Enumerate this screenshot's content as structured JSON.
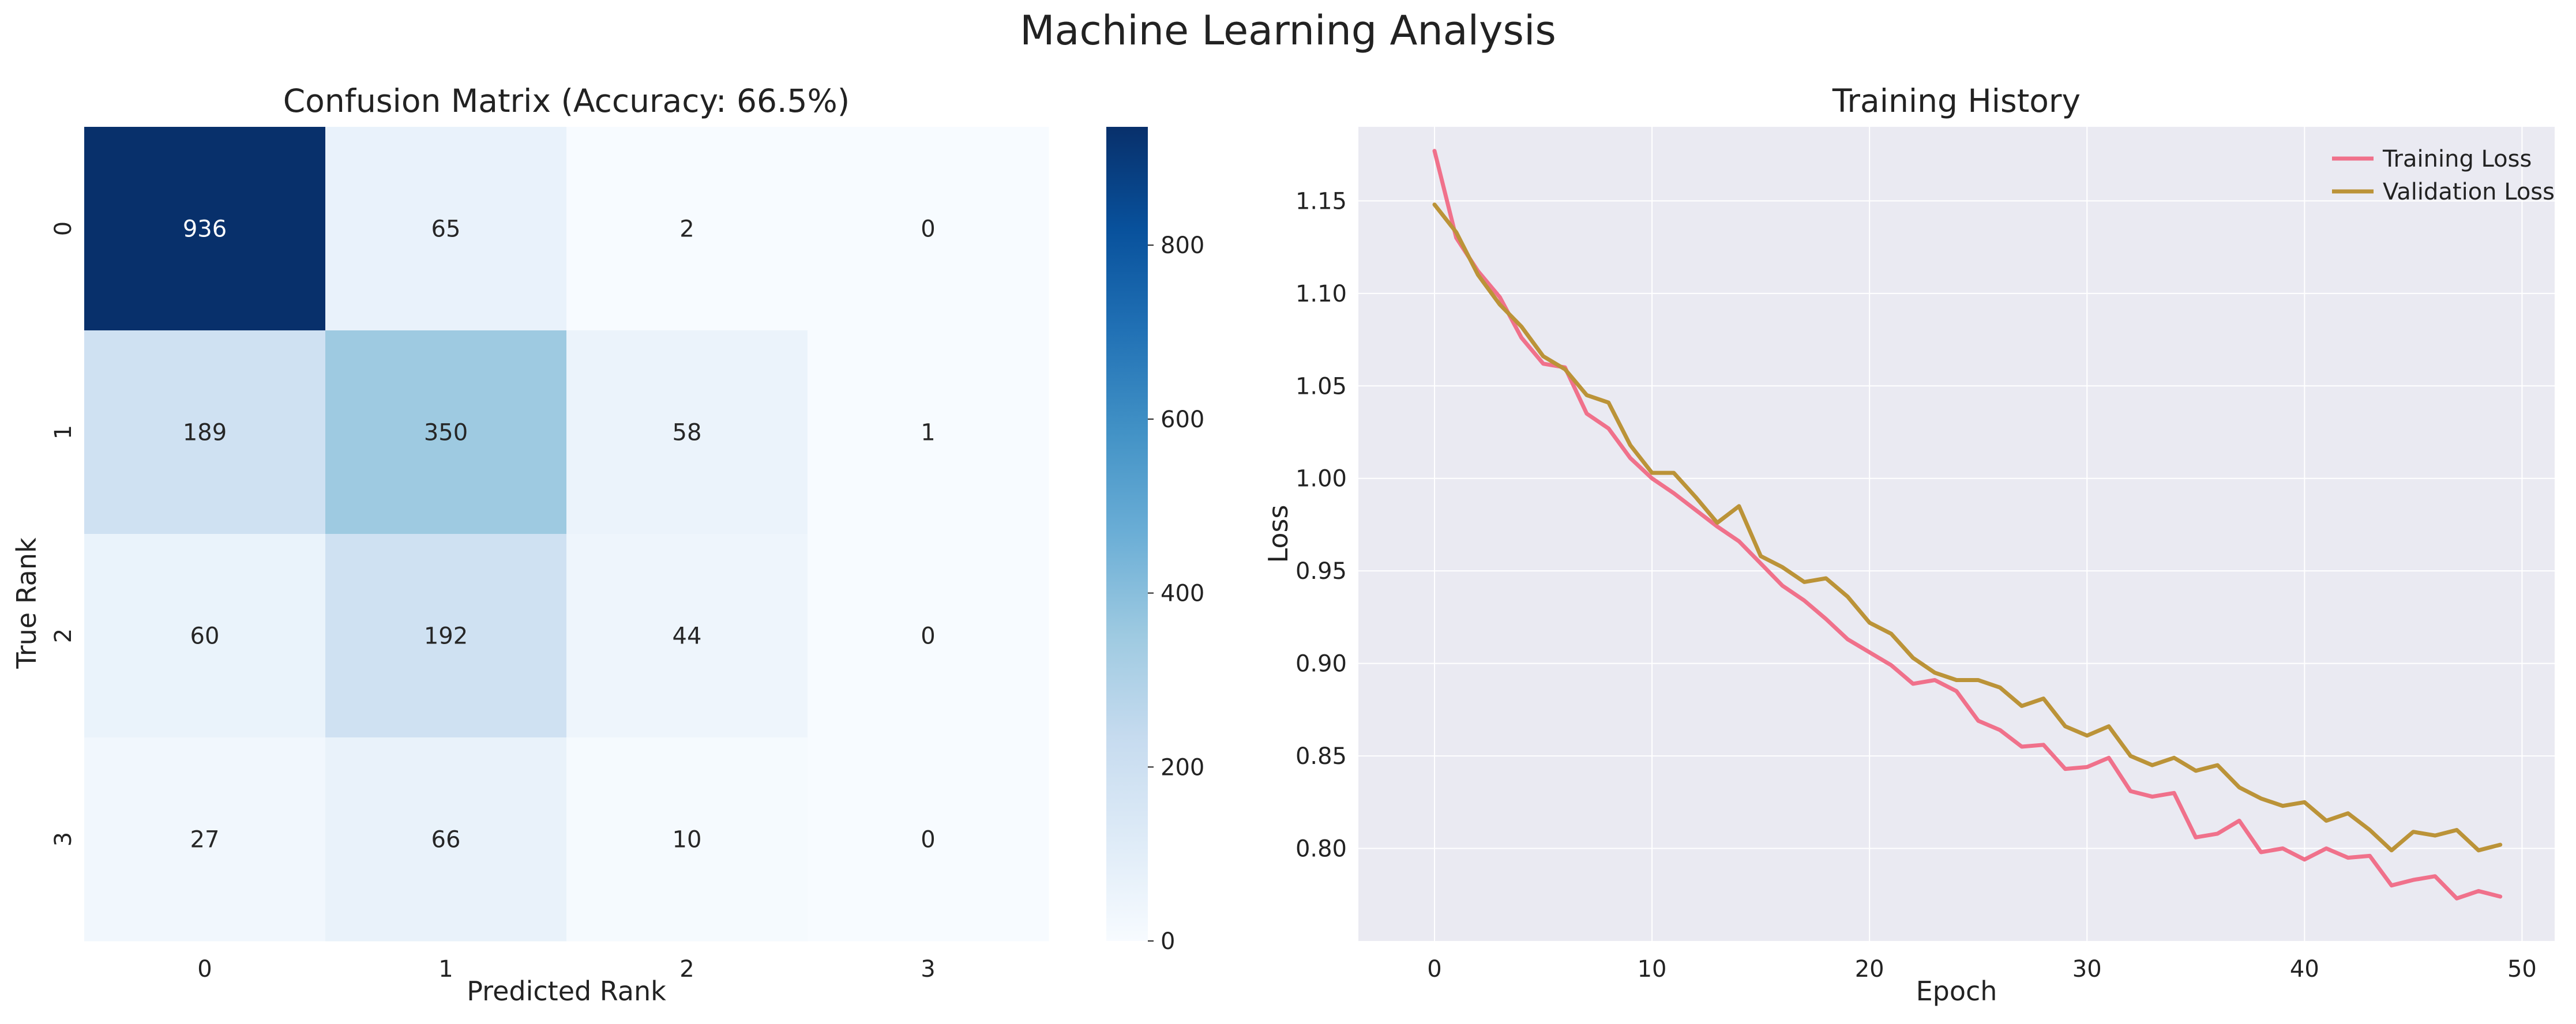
{
  "figure": {
    "title": "Machine Learning Analysis"
  },
  "chart_data": [
    {
      "type": "heatmap",
      "title": "Confusion Matrix (Accuracy: 66.5%)",
      "xlabel": "Predicted Rank",
      "ylabel": "True Rank",
      "x_categories": [
        "0",
        "1",
        "2",
        "3"
      ],
      "y_categories": [
        "0",
        "1",
        "2",
        "3"
      ],
      "values": [
        [
          936,
          65,
          2,
          0
        ],
        [
          189,
          350,
          58,
          1
        ],
        [
          60,
          192,
          44,
          0
        ],
        [
          27,
          66,
          10,
          0
        ]
      ],
      "colormap": "Blues",
      "colorbar": {
        "range": [
          0,
          936
        ],
        "ticks": [
          0,
          200,
          400,
          600,
          800
        ]
      }
    },
    {
      "type": "line",
      "title": "Training History",
      "xlabel": "Epoch",
      "ylabel": "Loss",
      "xlim": [
        -3.5,
        51.5
      ],
      "ylim": [
        0.75,
        1.19
      ],
      "xticks": [
        0,
        10,
        20,
        30,
        40,
        50
      ],
      "yticks": [
        0.8,
        0.85,
        0.9,
        0.95,
        1.0,
        1.05,
        1.1,
        1.15
      ],
      "grid": true,
      "legend": "top-right",
      "x": [
        0,
        1,
        2,
        3,
        4,
        5,
        6,
        7,
        8,
        9,
        10,
        11,
        12,
        13,
        14,
        15,
        16,
        17,
        18,
        19,
        20,
        21,
        22,
        23,
        24,
        25,
        26,
        27,
        28,
        29,
        30,
        31,
        32,
        33,
        34,
        35,
        36,
        37,
        38,
        39,
        40,
        41,
        42,
        43,
        44,
        45,
        46,
        47,
        48,
        49
      ],
      "series": [
        {
          "name": "Training Loss",
          "color": "#f0718b",
          "values": [
            1.177,
            1.13,
            1.112,
            1.098,
            1.076,
            1.062,
            1.06,
            1.035,
            1.027,
            1.011,
            1.0,
            0.992,
            0.983,
            0.974,
            0.966,
            0.954,
            0.942,
            0.934,
            0.924,
            0.913,
            0.906,
            0.899,
            0.889,
            0.891,
            0.885,
            0.869,
            0.864,
            0.855,
            0.856,
            0.843,
            0.844,
            0.849,
            0.831,
            0.828,
            0.83,
            0.806,
            0.808,
            0.815,
            0.798,
            0.8,
            0.794,
            0.8,
            0.795,
            0.796,
            0.78,
            0.783,
            0.785,
            0.773,
            0.777,
            0.774
          ]
        },
        {
          "name": "Validation Loss",
          "color": "#bb9338",
          "values": [
            1.148,
            1.133,
            1.11,
            1.094,
            1.082,
            1.066,
            1.059,
            1.045,
            1.041,
            1.018,
            1.003,
            1.003,
            0.99,
            0.976,
            0.985,
            0.958,
            0.952,
            0.944,
            0.946,
            0.936,
            0.922,
            0.916,
            0.903,
            0.895,
            0.891,
            0.891,
            0.887,
            0.877,
            0.881,
            0.866,
            0.861,
            0.866,
            0.85,
            0.845,
            0.849,
            0.842,
            0.845,
            0.833,
            0.827,
            0.823,
            0.825,
            0.815,
            0.819,
            0.81,
            0.799,
            0.809,
            0.807,
            0.81,
            0.799,
            0.802
          ]
        }
      ]
    }
  ]
}
